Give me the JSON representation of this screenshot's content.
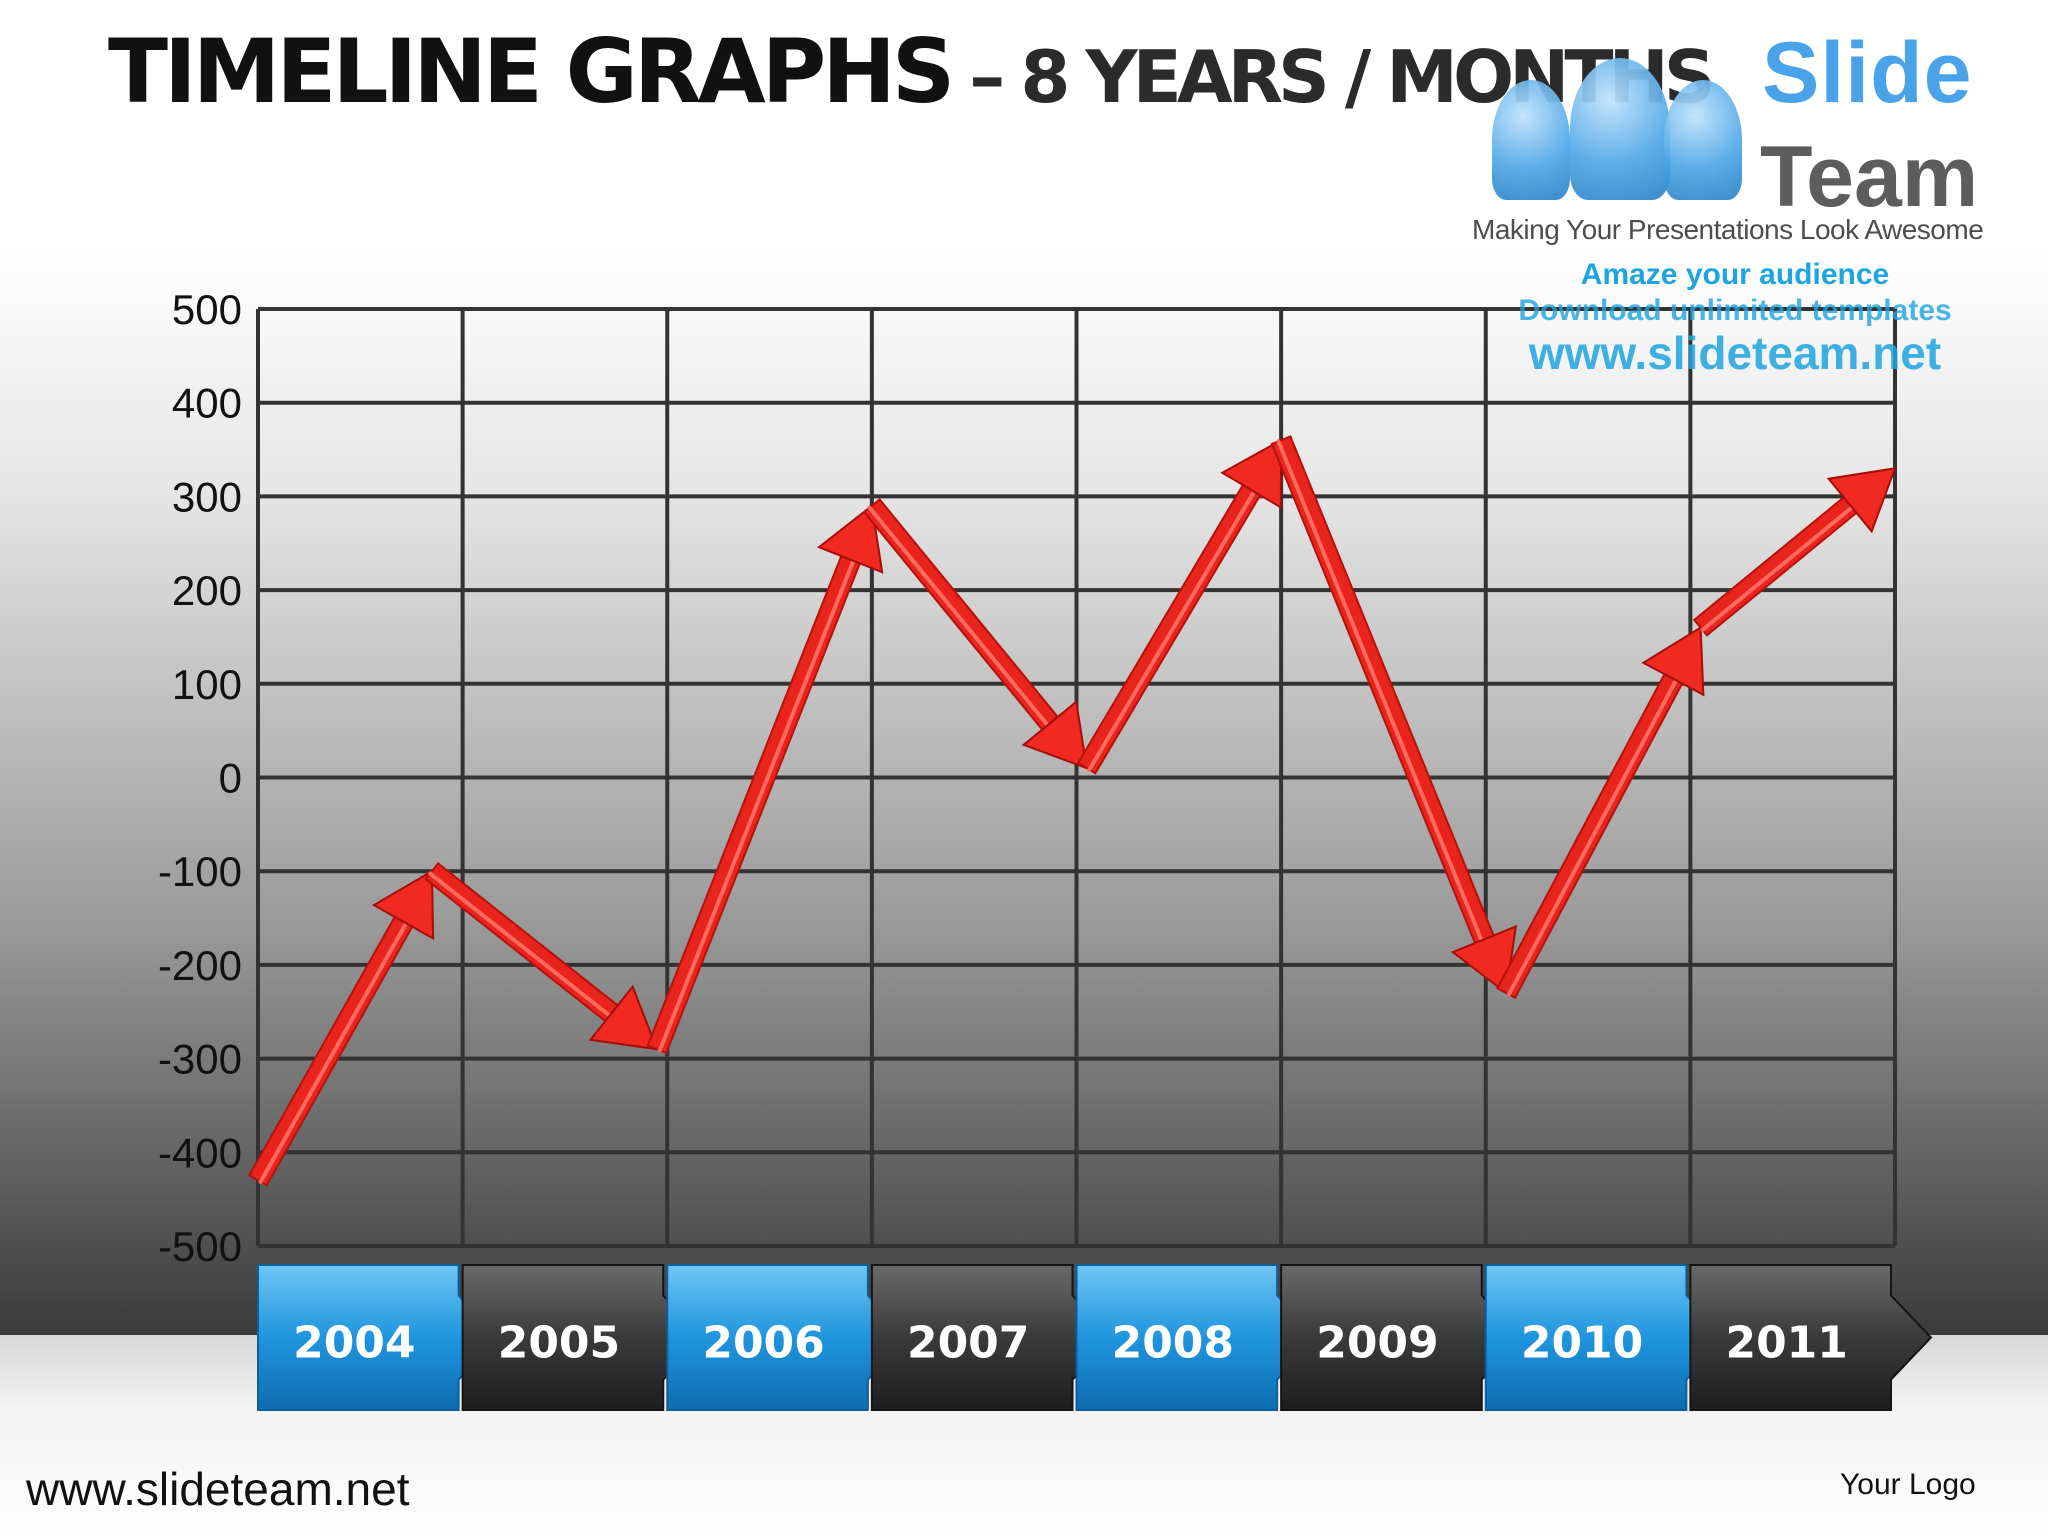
{
  "title": {
    "main": "TIMELINE  GRAPHS",
    "sub": "– 8 YEARS / MONTHS"
  },
  "brand": {
    "slide": "Slide",
    "team": "Team",
    "tagline": "Making Your Presentations Look Awesome",
    "amaze": "Amaze your audience",
    "download": "Download unlimited templates",
    "url": "www.slideteam.net"
  },
  "footer": {
    "url": "www.slideteam.net",
    "logo": "Your Logo"
  },
  "colors": {
    "line": "#e8241c",
    "year_blue": "#1f8fd6",
    "year_dark": "#2e2e2e",
    "grid": "#333333"
  },
  "chart_data": {
    "type": "line",
    "title": "",
    "xlabel": "",
    "ylabel": "",
    "ylim": [
      -500,
      500
    ],
    "yticks": [
      "500",
      "400",
      "300",
      "200",
      "100",
      "0",
      "-100",
      "-200",
      "-300",
      "-400",
      "-500"
    ],
    "categories": [
      "2004",
      "2005",
      "2006",
      "2007",
      "2008",
      "2009",
      "2010",
      "2011"
    ],
    "grid": true,
    "series": [
      {
        "x": [
          0,
          0.85,
          1.95,
          3.0,
          4.05,
          5.0,
          6.1,
          7.05,
          8.0
        ],
        "values": [
          -430,
          -100,
          -290,
          290,
          10,
          360,
          -230,
          160,
          330
        ]
      }
    ]
  }
}
